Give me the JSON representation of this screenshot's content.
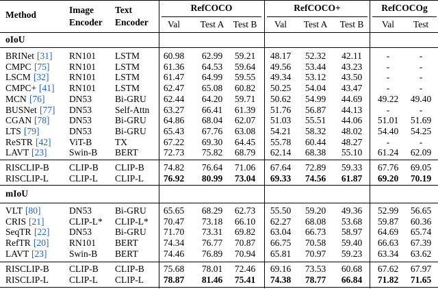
{
  "header": {
    "method": "Method",
    "image_encoder": [
      "Image",
      "Encoder"
    ],
    "text_encoder": [
      "Text",
      "Encoder"
    ],
    "groups": [
      {
        "name": "RefCOCO",
        "splits": [
          "Val",
          "Test A",
          "Test B"
        ]
      },
      {
        "name": "RefCOCO+",
        "splits": [
          "Val",
          "Test A",
          "Test B"
        ]
      },
      {
        "name": "RefCOCOg",
        "splits": [
          "Val",
          "Test"
        ]
      }
    ]
  },
  "sections": [
    {
      "label": "oIoU",
      "blocks": [
        [
          {
            "method": "BRINet",
            "ref": "[31]",
            "image_encoder": "RN101",
            "text_encoder": "LSTM",
            "values": [
              "60.98",
              "62.99",
              "59.21",
              "48.17",
              "52.32",
              "42.11",
              "-",
              "-"
            ]
          },
          {
            "method": "CMPC",
            "ref": "[75]",
            "image_encoder": "RN101",
            "text_encoder": "LSTM",
            "values": [
              "61.36",
              "64.53",
              "59.64",
              "49.56",
              "53.44",
              "43.23",
              "-",
              "-"
            ]
          },
          {
            "method": "LSCM",
            "ref": "[32]",
            "image_encoder": "RN101",
            "text_encoder": "LSTM",
            "values": [
              "61.47",
              "64.99",
              "59.55",
              "49.34",
              "53.12",
              "43.50",
              "-",
              "-"
            ]
          },
          {
            "method": "CMPC+",
            "ref": "[41]",
            "image_encoder": "RN101",
            "text_encoder": "LSTM",
            "values": [
              "62.47",
              "65.08",
              "60.82",
              "50.25",
              "54.04",
              "43.47",
              "-",
              "-"
            ]
          },
          {
            "method": "MCN",
            "ref": "[76]",
            "image_encoder": "DN53",
            "text_encoder": "Bi-GRU",
            "values": [
              "62.44",
              "64.20",
              "59.71",
              "50.62",
              "54.99",
              "44.69",
              "49.22",
              "49.40"
            ]
          },
          {
            "method": "BUSNet",
            "ref": "[77]",
            "image_encoder": "DN53",
            "text_encoder": "Self-Attn",
            "values": [
              "63.27",
              "66.41",
              "61.39",
              "51.76",
              "56.87",
              "44.13",
              "-",
              "-"
            ]
          },
          {
            "method": "CGAN",
            "ref": "[78]",
            "image_encoder": "DN53",
            "text_encoder": "Bi-GRU",
            "values": [
              "64.86",
              "68.04",
              "62.07",
              "51.03",
              "55.51",
              "44.06",
              "51.01",
              "51.69"
            ]
          },
          {
            "method": "LTS",
            "ref": "[79]",
            "image_encoder": "DN53",
            "text_encoder": "Bi-GRU",
            "values": [
              "65.43",
              "67.76",
              "63.08",
              "54.21",
              "58.32",
              "48.02",
              "54.40",
              "54.25"
            ]
          },
          {
            "method": "ReSTR",
            "ref": "[42]",
            "image_encoder": "ViT-B",
            "text_encoder": "TX",
            "values": [
              "67.22",
              "69.30",
              "64.45",
              "55.78",
              "60.44",
              "48.27",
              "-",
              "-"
            ]
          },
          {
            "method": "LAVT",
            "ref": "[23]",
            "image_encoder": "Swin-B",
            "text_encoder": "BERT",
            "values": [
              "72.73",
              "75.82",
              "68.79",
              "62.14",
              "68.38",
              "55.10",
              "61.24",
              "62.09"
            ]
          }
        ],
        [
          {
            "method": "RISCLIP-B",
            "image_encoder": "CLIP-B",
            "text_encoder": "CLIP-B",
            "values": [
              "74.82",
              "76.64",
              "71.06",
              "67.64",
              "72.89",
              "59.33",
              "67.76",
              "69.05"
            ]
          },
          {
            "method": "RISCLIP-L",
            "image_encoder": "CLIP-L",
            "text_encoder": "CLIP-L",
            "values": [
              "76.92",
              "80.99",
              "73.04",
              "69.33",
              "74.56",
              "61.87",
              "69.20",
              "70.19"
            ],
            "bold": true
          }
        ]
      ]
    },
    {
      "label": "mIoU",
      "blocks": [
        [
          {
            "method": "VLT",
            "ref": "[80]",
            "image_encoder": "DN53",
            "text_encoder": "Bi-GRU",
            "values": [
              "65.65",
              "68.29",
              "62.73",
              "55.50",
              "59.20",
              "49.36",
              "52.99",
              "56.65"
            ]
          },
          {
            "method": "CRIS",
            "ref": "[21]",
            "image_encoder": "CLIP-L*",
            "text_encoder": "CLIP-L*",
            "values": [
              "70.47",
              "73.18",
              "66.10",
              "62.27",
              "68.08",
              "53.68",
              "59.87",
              "60.36"
            ]
          },
          {
            "method": "SeqTR",
            "ref": "[22]",
            "image_encoder": "DN53",
            "text_encoder": "Bi-GRU",
            "values": [
              "71.70",
              "73.31",
              "69.82",
              "63.04",
              "66.73",
              "58.97",
              "64.69",
              "65.74"
            ]
          },
          {
            "method": "RefTR",
            "ref": "[20]",
            "image_encoder": "RN101",
            "text_encoder": "BERT",
            "values": [
              "74.34",
              "76.77",
              "70.87",
              "66.75",
              "70.58",
              "59.40",
              "66.63",
              "67.39"
            ]
          },
          {
            "method": "LAVT",
            "ref": "[23]",
            "image_encoder": "Swin-B",
            "text_encoder": "BERT",
            "values": [
              "74.46",
              "76.89",
              "70.94",
              "65.81",
              "70.97",
              "59.23",
              "63.34",
              "63.62"
            ]
          }
        ],
        [
          {
            "method": "RISCLIP-B",
            "image_encoder": "CLIP-B",
            "text_encoder": "CLIP-B",
            "values": [
              "75.68",
              "78.01",
              "72.46",
              "69.16",
              "73.53",
              "60.68",
              "67.62",
              "67.97"
            ]
          },
          {
            "method": "RISCLIP-L",
            "image_encoder": "CLIP-L",
            "text_encoder": "CLIP-L",
            "values": [
              "78.87",
              "81.46",
              "75.41",
              "74.38",
              "78.77",
              "66.84",
              "71.82",
              "71.65"
            ],
            "bold": true
          }
        ]
      ]
    }
  ]
}
